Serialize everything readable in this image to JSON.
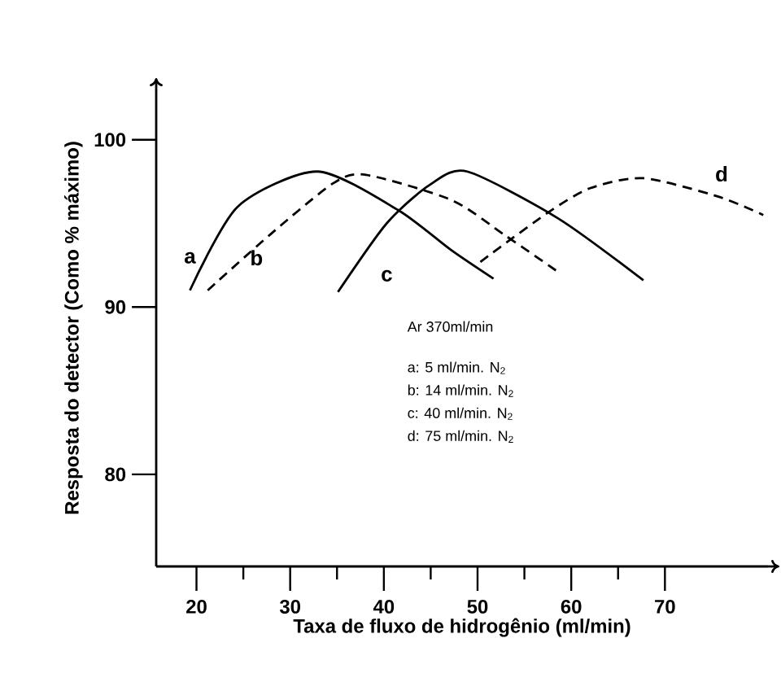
{
  "chart_data": {
    "type": "line",
    "xlabel": "Taxa de fluxo de hidrogênio (ml/min)",
    "ylabel": "Resposta do detector (Como % máximo)",
    "xlim": [
      15.7,
      81
    ],
    "ylim": [
      74.5,
      103
    ],
    "xticks": [
      20,
      {
        "value": 25,
        "label": null
      },
      30,
      {
        "value": 35,
        "label": null
      },
      40,
      {
        "value": 45,
        "label": null
      },
      50,
      {
        "value": 55,
        "label": null
      },
      60,
      {
        "value": 65,
        "label": null
      },
      70
    ],
    "yticks": [
      80,
      90,
      100
    ],
    "series": [
      {
        "name": "a",
        "color": "#000000",
        "line_style": "solid",
        "x": [
          19.3,
          24.4,
          32.9,
          41.5,
          47.2,
          51.7
        ],
        "values": [
          91.0,
          96.0,
          98.1,
          95.8,
          93.4,
          91.7
        ]
      },
      {
        "name": "b",
        "color": "#000000",
        "line_style": "dashed",
        "x": [
          21.2,
          27.8,
          34.6,
          38.1,
          47.2,
          52.9,
          58.6
        ],
        "values": [
          91.0,
          94.3,
          97.4,
          97.9,
          96.4,
          94.3,
          92.1
        ]
      },
      {
        "name": "c",
        "color": "#000000",
        "line_style": "solid",
        "x": [
          35.1,
          40.3,
          44.9,
          48.9,
          58.6,
          67.7
        ],
        "values": [
          90.9,
          95.0,
          97.3,
          98.1,
          95.3,
          91.6
        ]
      },
      {
        "name": "d",
        "color": "#000000",
        "line_style": "dashed",
        "x": [
          50.3,
          57.4,
          62.0,
          67.7,
          75.7,
          80.5
        ],
        "values": [
          92.7,
          95.6,
          97.1,
          97.7,
          96.6,
          95.5
        ]
      }
    ],
    "annotations": [
      "Ar 370ml/min",
      "a: 5 ml/min. N$_{2}$",
      "b: 14 ml/min. N$_{2}$",
      "c: 40 ml/min. N$_{2}$",
      "d: 75 ml/min. N$_{2}$"
    ],
    "grid": false,
    "legend": false
  }
}
